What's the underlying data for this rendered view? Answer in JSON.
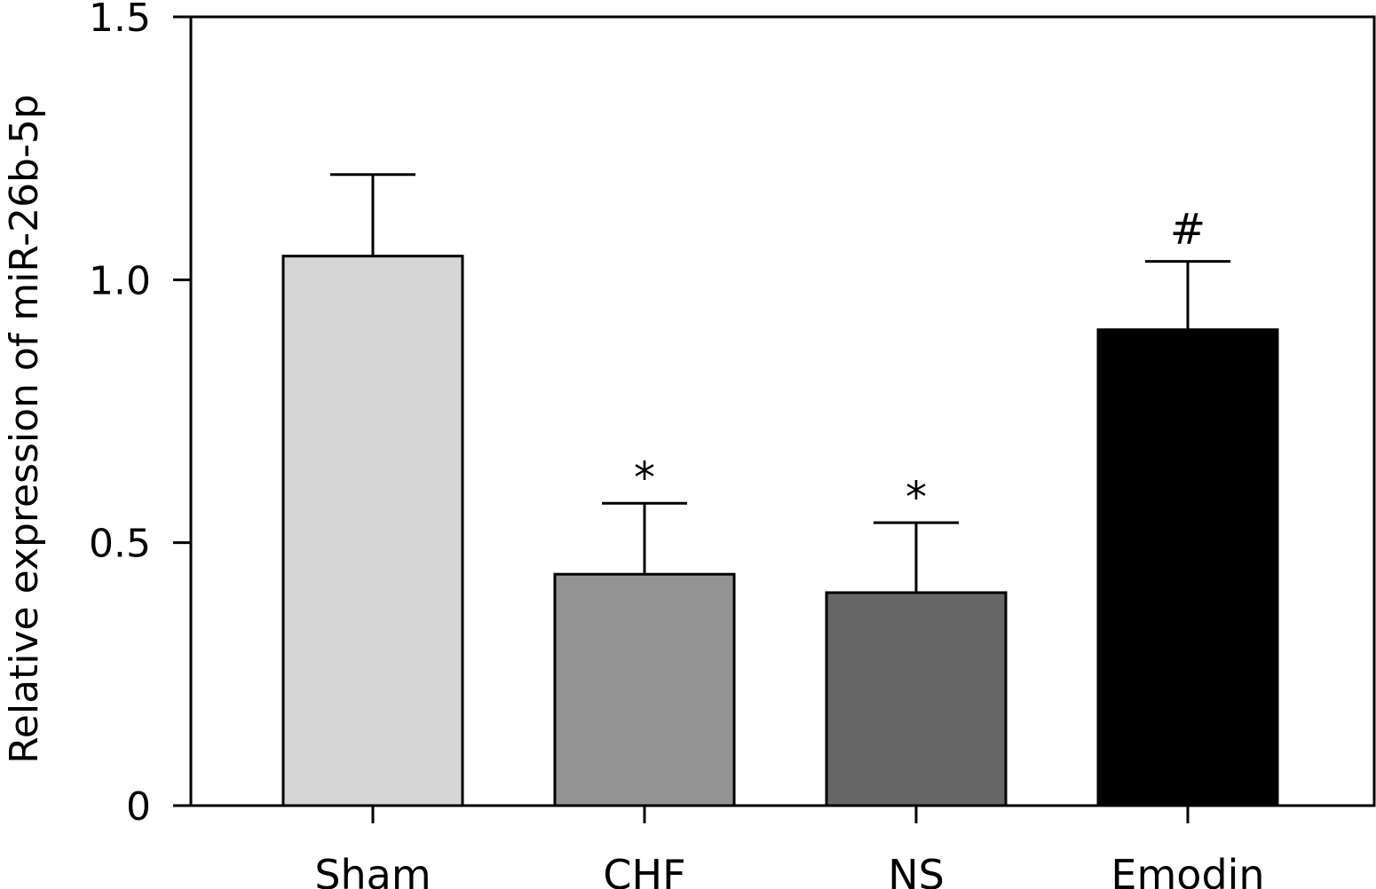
{
  "chart_data": {
    "type": "bar",
    "title": "",
    "xlabel": "",
    "ylabel": "Relative expression of miR-26b-5p",
    "ylim": [
      0,
      1.5
    ],
    "yticks": [
      {
        "value": 0,
        "label": "0"
      },
      {
        "value": 0.5,
        "label": "0.5"
      },
      {
        "value": 1.0,
        "label": "1.0"
      },
      {
        "value": 1.5,
        "label": "1.5"
      }
    ],
    "categories": [
      "Sham",
      "CHF",
      "NS",
      "Emodin"
    ],
    "values": [
      1.045,
      0.44,
      0.405,
      0.905
    ],
    "error_upper": [
      1.2,
      0.575,
      0.538,
      1.035
    ],
    "significance": [
      "",
      "*",
      "*",
      "#"
    ],
    "colors": [
      "#d6d6d6",
      "#939393",
      "#666666",
      "#000000"
    ],
    "grid": false,
    "legend": "none"
  }
}
